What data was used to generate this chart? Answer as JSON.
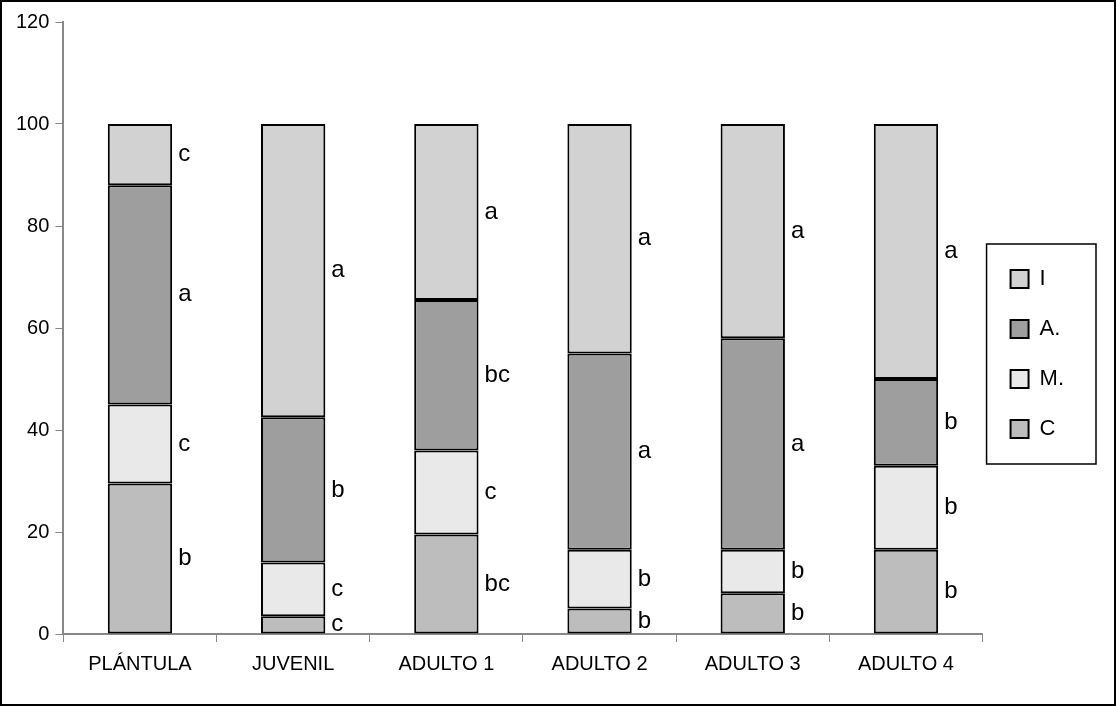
{
  "chart_data": {
    "type": "bar",
    "stacked": true,
    "categories": [
      "PLÁNTULA",
      "JUVENIL",
      "ADULTO 1",
      "ADULTO 2",
      "ADULTO 3",
      "ADULTO 4"
    ],
    "series": [
      {
        "name": "C",
        "color": "#bdbdbd",
        "values": [
          29.5,
          3.5,
          19.5,
          5,
          8,
          16.5
        ]
      },
      {
        "name": "M.",
        "color": "#e9e9e9",
        "values": [
          15.5,
          10.5,
          16.5,
          11.5,
          8.5,
          16.5
        ]
      },
      {
        "name": "A.",
        "color": "#9e9e9e",
        "values": [
          43,
          28.5,
          29.5,
          38.5,
          41.5,
          17
        ]
      },
      {
        "name": "I",
        "color": "#d2d2d2",
        "values": [
          12,
          57.5,
          34.5,
          45,
          42,
          50
        ]
      }
    ],
    "ylim": [
      0,
      120
    ],
    "yticks": [
      0,
      20,
      40,
      60,
      80,
      100,
      120
    ],
    "legend": "right",
    "annotations": [
      "c",
      "a",
      "c",
      "b",
      "a",
      "b",
      "c",
      "c",
      "a",
      "bc",
      "c",
      "bc",
      "a",
      "a",
      "b",
      "b",
      "a",
      "a",
      "b",
      "b",
      "a",
      "b",
      "b",
      "b"
    ]
  }
}
